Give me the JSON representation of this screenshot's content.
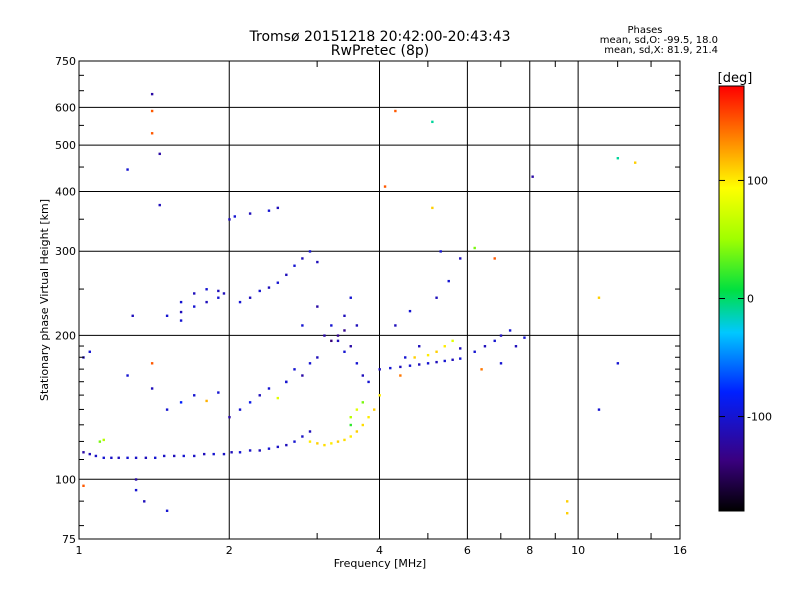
{
  "chart_data": {
    "type": "scatter",
    "title": "Tromsø 20151218 20:42:00-20:43:43",
    "subtitle": "RwPretec (8p)",
    "xlabel": "Frequency [MHz]",
    "ylabel": "Stationary phase Virtual Height [km]",
    "x_scale": "log",
    "y_scale": "log",
    "xlim": [
      1,
      16
    ],
    "ylim": [
      75,
      750
    ],
    "x_ticks": [
      1,
      2,
      4,
      6,
      8,
      10,
      16
    ],
    "x_ticks_labels": [
      "1",
      "2",
      "4",
      "6",
      "8",
      "10",
      "16"
    ],
    "y_ticks": [
      75,
      100,
      200,
      300,
      400,
      500,
      600,
      750
    ],
    "y_ticks_labels": [
      "75",
      "100",
      "200",
      "300",
      "400",
      "500",
      "600",
      "750"
    ],
    "grid": true,
    "phase_info": {
      "title": "Phases",
      "line1": "mean, sd,O: -99.5, 18.0",
      "line2": "mean, sd,X:  81.9, 21.4"
    },
    "colorbar": {
      "label": "[deg]",
      "range": [
        -180,
        180
      ],
      "tick_values": [
        100,
        0,
        -100
      ],
      "tick_labels": [
        "100",
        "0",
        "-100"
      ]
    },
    "points": [
      [
        1.02,
        114,
        -120
      ],
      [
        1.05,
        113,
        -110
      ],
      [
        1.08,
        112,
        -105
      ],
      [
        1.12,
        111,
        -100
      ],
      [
        1.16,
        111,
        -105
      ],
      [
        1.2,
        111,
        -110
      ],
      [
        1.25,
        111,
        -100
      ],
      [
        1.3,
        111,
        -105
      ],
      [
        1.36,
        111,
        -110
      ],
      [
        1.42,
        111,
        -100
      ],
      [
        1.48,
        112,
        -105
      ],
      [
        1.55,
        112,
        -110
      ],
      [
        1.62,
        112,
        -100
      ],
      [
        1.7,
        112,
        -105
      ],
      [
        1.78,
        113,
        -110
      ],
      [
        1.86,
        113,
        -100
      ],
      [
        1.95,
        113,
        -105
      ],
      [
        2.02,
        114,
        -110
      ],
      [
        2.1,
        114,
        -100
      ],
      [
        2.2,
        115,
        -105
      ],
      [
        2.3,
        115,
        -110
      ],
      [
        2.4,
        116,
        -100
      ],
      [
        2.5,
        117,
        -105
      ],
      [
        2.6,
        118,
        -110
      ],
      [
        2.7,
        120,
        -100
      ],
      [
        2.8,
        123,
        -105
      ],
      [
        2.9,
        126,
        -110
      ],
      [
        1.1,
        120,
        40
      ],
      [
        1.12,
        121,
        60
      ],
      [
        1.5,
        140,
        -100
      ],
      [
        1.6,
        145,
        -80
      ],
      [
        1.7,
        150,
        -100
      ],
      [
        1.8,
        146,
        120
      ],
      [
        1.9,
        152,
        -100
      ],
      [
        2.0,
        135,
        -120
      ],
      [
        2.1,
        140,
        -100
      ],
      [
        2.2,
        145,
        -90
      ],
      [
        2.3,
        150,
        -110
      ],
      [
        2.4,
        155,
        -100
      ],
      [
        2.5,
        148,
        80
      ],
      [
        2.6,
        160,
        -110
      ],
      [
        2.7,
        170,
        -100
      ],
      [
        2.8,
        165,
        -120
      ],
      [
        2.9,
        175,
        -100
      ],
      [
        3.0,
        180,
        -110
      ],
      [
        3.1,
        200,
        -120
      ],
      [
        3.2,
        210,
        -100
      ],
      [
        3.3,
        195,
        -110
      ],
      [
        3.4,
        185,
        -100
      ],
      [
        3.5,
        190,
        -120
      ],
      [
        3.6,
        175,
        -100
      ],
      [
        3.7,
        165,
        -110
      ],
      [
        3.8,
        160,
        -100
      ],
      [
        2.9,
        120,
        100
      ],
      [
        3.0,
        119,
        110
      ],
      [
        3.1,
        118,
        105
      ],
      [
        3.2,
        119,
        100
      ],
      [
        3.3,
        120,
        110
      ],
      [
        3.4,
        121,
        105
      ],
      [
        3.5,
        123,
        100
      ],
      [
        3.6,
        126,
        110
      ],
      [
        3.7,
        130,
        105
      ],
      [
        3.8,
        135,
        100
      ],
      [
        3.9,
        140,
        110
      ],
      [
        4.0,
        150,
        100
      ],
      [
        3.5,
        135,
        60
      ],
      [
        3.6,
        140,
        80
      ],
      [
        3.7,
        145,
        40
      ],
      [
        3.5,
        130,
        20
      ],
      [
        3.3,
        200,
        -130
      ],
      [
        3.4,
        220,
        -110
      ],
      [
        3.5,
        240,
        -100
      ],
      [
        3.0,
        230,
        -120
      ],
      [
        2.8,
        210,
        -100
      ],
      [
        1.5,
        220,
        -100
      ],
      [
        1.6,
        224,
        -110
      ],
      [
        1.7,
        230,
        -100
      ],
      [
        1.8,
        235,
        -110
      ],
      [
        1.9,
        240,
        -100
      ],
      [
        1.95,
        245,
        -110
      ],
      [
        1.6,
        235,
        -100
      ],
      [
        1.7,
        245,
        -110
      ],
      [
        1.8,
        250,
        -100
      ],
      [
        1.9,
        248,
        -110
      ],
      [
        2.1,
        235,
        -100
      ],
      [
        2.2,
        240,
        -110
      ],
      [
        2.3,
        248,
        -100
      ],
      [
        2.4,
        252,
        -110
      ],
      [
        2.5,
        258,
        -100
      ],
      [
        2.6,
        268,
        -110
      ],
      [
        2.7,
        280,
        -100
      ],
      [
        2.8,
        290,
        -110
      ],
      [
        2.9,
        300,
        -100
      ],
      [
        3.0,
        285,
        -110
      ],
      [
        2.0,
        350,
        -110
      ],
      [
        2.05,
        355,
        -100
      ],
      [
        2.2,
        360,
        -110
      ],
      [
        2.4,
        365,
        -100
      ],
      [
        2.5,
        370,
        -110
      ],
      [
        4.0,
        170,
        -110
      ],
      [
        4.2,
        171,
        -100
      ],
      [
        4.4,
        172,
        -110
      ],
      [
        4.6,
        173,
        -100
      ],
      [
        4.8,
        174,
        -110
      ],
      [
        5.0,
        175,
        -100
      ],
      [
        5.2,
        176,
        -110
      ],
      [
        5.4,
        177,
        -100
      ],
      [
        5.6,
        178,
        -110
      ],
      [
        5.8,
        179,
        -100
      ],
      [
        4.5,
        180,
        -100
      ],
      [
        4.8,
        190,
        -110
      ],
      [
        5.0,
        182,
        100
      ],
      [
        5.2,
        185,
        110
      ],
      [
        5.4,
        190,
        100
      ],
      [
        5.6,
        195,
        80
      ],
      [
        5.8,
        188,
        -110
      ],
      [
        6.2,
        185,
        -100
      ],
      [
        6.5,
        190,
        -110
      ],
      [
        6.8,
        195,
        -100
      ],
      [
        7.0,
        200,
        -110
      ],
      [
        7.3,
        205,
        -100
      ],
      [
        7.5,
        190,
        -110
      ],
      [
        7.8,
        198,
        -100
      ],
      [
        6.4,
        170,
        140
      ],
      [
        7.0,
        175,
        -100
      ],
      [
        4.3,
        210,
        -110
      ],
      [
        4.6,
        225,
        -100
      ],
      [
        5.2,
        240,
        -110
      ],
      [
        5.5,
        260,
        -100
      ],
      [
        5.8,
        290,
        -110
      ],
      [
        6.2,
        305,
        40
      ],
      [
        6.8,
        290,
        150
      ],
      [
        1.4,
        640,
        -120
      ],
      [
        1.4,
        590,
        150
      ],
      [
        1.4,
        530,
        150
      ],
      [
        1.45,
        480,
        -120
      ],
      [
        1.25,
        445,
        -100
      ],
      [
        1.45,
        375,
        -110
      ],
      [
        4.3,
        590,
        150
      ],
      [
        5.1,
        560,
        -10
      ],
      [
        5.1,
        370,
        110
      ],
      [
        4.1,
        410,
        150
      ],
      [
        5.3,
        300,
        -100
      ],
      [
        8.1,
        430,
        -120
      ],
      [
        12.0,
        470,
        -10
      ],
      [
        13.0,
        460,
        110
      ],
      [
        11.0,
        240,
        110
      ],
      [
        11.0,
        140,
        -100
      ],
      [
        12.0,
        175,
        -100
      ],
      [
        9.5,
        90,
        110
      ],
      [
        9.5,
        85,
        110
      ],
      [
        1.02,
        97,
        150
      ],
      [
        1.3,
        100,
        -120
      ],
      [
        1.3,
        95,
        -100
      ],
      [
        1.35,
        90,
        -110
      ],
      [
        1.5,
        86,
        -100
      ],
      [
        1.28,
        220,
        -110
      ],
      [
        1.6,
        215,
        -100
      ],
      [
        1.05,
        185,
        -100
      ],
      [
        1.02,
        180,
        -110
      ],
      [
        1.25,
        165,
        -100
      ],
      [
        1.4,
        175,
        150
      ],
      [
        1.4,
        155,
        -110
      ],
      [
        2.6,
        160,
        -100
      ],
      [
        3.2,
        195,
        -140
      ],
      [
        3.4,
        205,
        -130
      ],
      [
        3.6,
        210,
        -110
      ],
      [
        4.4,
        165,
        140
      ],
      [
        4.7,
        180,
        110
      ]
    ]
  }
}
